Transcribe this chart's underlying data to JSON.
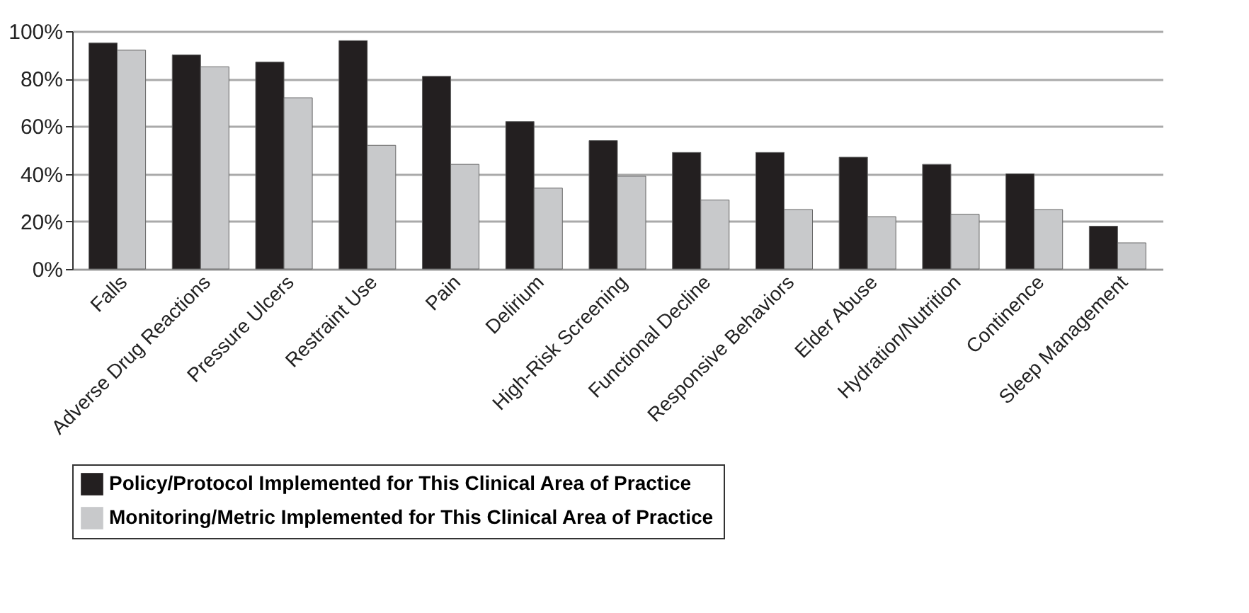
{
  "chart_data": {
    "type": "bar",
    "categories": [
      "Falls",
      "Adverse Drug Reactions",
      "Pressure Ulcers",
      "Restraint Use",
      "Pain",
      "Delirium",
      "High-Risk Screening",
      "Functional Decline",
      "Responsive Behaviors",
      "Elder Abuse",
      "Hydration/Nutrition",
      "Continence",
      "Sleep Management"
    ],
    "series": [
      {
        "name": "Policy/Protocol Implemented for This Clinical Area of Practice",
        "color": "#231f20",
        "values": [
          95,
          90,
          87,
          96,
          81,
          62,
          54,
          49,
          49,
          47,
          44,
          40,
          18
        ]
      },
      {
        "name": "Monitoring/Metric Implemented for This Clinical Area of Practice",
        "color": "#c8c9cb",
        "values": [
          92,
          85,
          72,
          52,
          44,
          34,
          39,
          29,
          25,
          22,
          23,
          25,
          11
        ]
      }
    ],
    "ylim": [
      0,
      100
    ],
    "yticks": [
      {
        "value": 0,
        "label": "0%"
      },
      {
        "value": 20,
        "label": "20%"
      },
      {
        "value": 40,
        "label": "40%"
      },
      {
        "value": 60,
        "label": "60%"
      },
      {
        "value": 80,
        "label": "80%"
      },
      {
        "value": 100,
        "label": "100%"
      }
    ],
    "grid": "y",
    "legend": "bottom"
  }
}
